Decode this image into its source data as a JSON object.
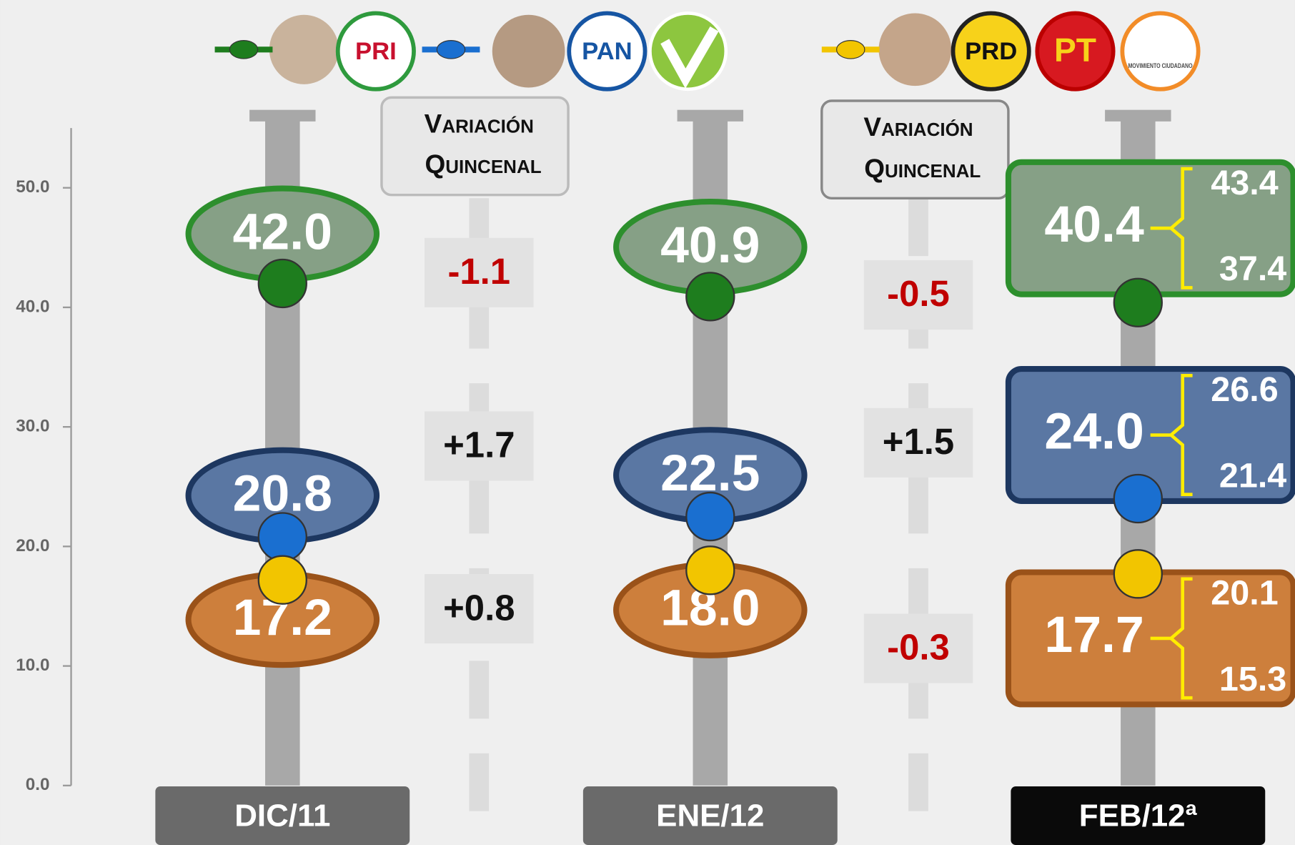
{
  "chart_data": {
    "type": "dot-column",
    "categories": [
      "DIC/11",
      "ENE/12",
      "FEB/12ª"
    ],
    "ylim": [
      0,
      55
    ],
    "yticks": [
      {
        "value": 0,
        "label": "0.0"
      },
      {
        "value": 10,
        "label": "10.0"
      },
      {
        "value": 20,
        "label": "20.0"
      },
      {
        "value": 30,
        "label": "30.0"
      },
      {
        "value": 40,
        "label": "40.0"
      },
      {
        "value": 50,
        "label": "50.0"
      }
    ],
    "variation_title": [
      "Variación",
      "Quincenal"
    ],
    "series": [
      {
        "color": "#1e7d1e",
        "fill": "#86a086",
        "border": "#2d8f2d",
        "parties": [
          "PRI"
        ],
        "values": [
          42.0,
          40.9,
          40.4
        ],
        "value_labels": [
          "42.0",
          "40.9",
          "40.4"
        ],
        "variation": [
          -1.1,
          -0.5
        ],
        "variation_labels": [
          "-1.1",
          "-0.5"
        ],
        "range": [
          37.4,
          43.4
        ]
      },
      {
        "color": "#1a6fd0",
        "fill": "#5a77a3",
        "border": "#1d3760",
        "parties": [
          "PAN"
        ],
        "values": [
          20.8,
          22.5,
          24.0
        ],
        "value_labels": [
          "20.8",
          "22.5",
          "24.0"
        ],
        "variation": [
          1.7,
          1.5
        ],
        "variation_labels": [
          "+1.7",
          "+1.5"
        ],
        "range": [
          21.4,
          26.6
        ]
      },
      {
        "color": "#f2c500",
        "fill": "#cd7f3c",
        "border": "#9a5219",
        "parties": [
          "PRD",
          "PT",
          "MOVIMIENTO CIUDADANO"
        ],
        "values": [
          17.2,
          18.0,
          17.7
        ],
        "value_labels": [
          "17.2",
          "18.0",
          "17.7"
        ],
        "variation": [
          0.8,
          -0.3
        ],
        "variation_labels": [
          "+0.8",
          "-0.3"
        ],
        "range": [
          15.3,
          20.1
        ]
      }
    ]
  }
}
